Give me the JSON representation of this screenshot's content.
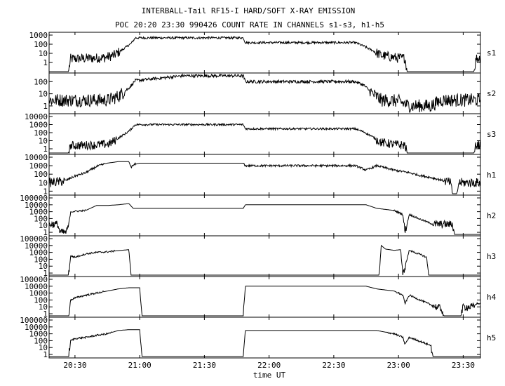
{
  "title": "INTERBALL-Tail RF15-I HARD/SOFT X-RAY EMISSION",
  "subtitle": "POC 20:20 23:30 990426  COUNT RATE IN CHANNELS s1-s3, h1-h5",
  "line_color": "#000000",
  "chart_data": {
    "type": "line",
    "xlabel": "time UT",
    "x_ticks": [
      "20:30",
      "21:00",
      "21:30",
      "22:00",
      "22:30",
      "23:00",
      "23:30"
    ],
    "x_range": [
      "20:18",
      "23:38"
    ],
    "y_scale": "log",
    "grid": false,
    "panels": [
      {
        "name": "s1",
        "y_ticks": [
          "1",
          "10",
          "100",
          "1000"
        ],
        "ylim": [
          0.1,
          1000
        ],
        "series": [
          {
            "x": [
              "20:18",
              "20:27",
              "20:28",
              "20:40",
              "20:44",
              "20:48",
              "20:52",
              "20:56",
              "20:58",
              "21:20",
              "21:48",
              "21:49",
              "22:00",
              "22:30",
              "22:40",
              "22:44",
              "22:48",
              "22:52",
              "23:00",
              "23:03",
              "23:04",
              "23:35",
              "23:36",
              "23:38"
            ],
            "y": [
              0.1,
              0.1,
              2.5,
              3,
              3.5,
              6,
              25,
              120,
              500,
              500,
              500,
              150,
              150,
              150,
              150,
              60,
              20,
              6,
              3,
              3,
              0.1,
              0.1,
              3,
              3
            ],
            "noise": [
              [
                20,
                20.5
              ],
              [
                20.9,
                22.9
              ],
              [
                22.8,
                23.05
              ],
              [
                23.07,
                23.8
              ]
            ]
          }
        ]
      },
      {
        "name": "s2",
        "y_ticks": [
          "1",
          "10",
          "100"
        ],
        "ylim": [
          0.3,
          300
        ],
        "series": [
          {
            "x": [
              "20:18",
              "20:20",
              "20:40",
              "20:45",
              "20:50",
              "20:55",
              "20:58",
              "21:20",
              "21:48",
              "21:49",
              "22:10",
              "22:40",
              "22:44",
              "22:48",
              "22:52",
              "23:00",
              "23:05",
              "23:15",
              "23:20",
              "23:25",
              "23:30",
              "23:38"
            ],
            "y": [
              3,
              3,
              3,
              3,
              6,
              30,
              120,
              300,
              300,
              100,
              100,
              100,
              50,
              10,
              3,
              2.5,
              1,
              1,
              3,
              3,
              3,
              3
            ],
            "noise": [
              [
                20,
                20.5
              ],
              [
                20.5,
                22.9
              ],
              [
                22.8,
                23.3
              ],
              [
                23.4,
                23.9
              ]
            ]
          }
        ]
      },
      {
        "name": "s3",
        "y_ticks": [
          "1",
          "10",
          "100",
          "1000",
          "10000"
        ],
        "ylim": [
          0.3,
          10000
        ],
        "series": [
          {
            "x": [
              "20:18",
              "20:27",
              "20:28",
              "20:40",
              "20:46",
              "20:50",
              "20:55",
              "20:58",
              "21:20",
              "21:48",
              "21:49",
              "22:00",
              "22:40",
              "22:44",
              "22:48",
              "22:52",
              "23:00",
              "23:03",
              "23:04",
              "23:35",
              "23:36",
              "23:38"
            ],
            "y": [
              0.3,
              0.3,
              2.5,
              3,
              4,
              20,
              150,
              1000,
              1000,
              1000,
              300,
              300,
              300,
              120,
              30,
              6,
              3,
              3,
              0.3,
              0.3,
              3,
              3
            ],
            "noise": [
              [
                20,
                20.5
              ],
              [
                20.9,
                22.9
              ],
              [
                22.8,
                23.05
              ],
              [
                23.07,
                23.8
              ]
            ]
          }
        ]
      },
      {
        "name": "h1",
        "y_ticks": [
          "1",
          "10",
          "100",
          "1000",
          "10000"
        ],
        "ylim": [
          0.5,
          10000
        ],
        "series": [
          {
            "x": [
              "20:18",
              "20:25",
              "20:30",
              "20:35",
              "20:40",
              "20:45",
              "20:50",
              "20:55",
              "20:56",
              "20:58",
              "21:00",
              "21:20",
              "21:48",
              "21:49",
              "22:00",
              "22:40",
              "22:45",
              "22:50",
              "22:58",
              "23:05",
              "23:10",
              "23:15",
              "23:20",
              "23:24",
              "23:25",
              "23:27",
              "23:28",
              "23:38"
            ],
            "y": [
              10,
              15,
              60,
              150,
              800,
              2000,
              3000,
              3000,
              700,
              1500,
              2000,
              2000,
              2000,
              1000,
              1000,
              1000,
              300,
              1000,
              300,
              150,
              70,
              40,
              20,
              10,
              0.5,
              0.5,
              10,
              10
            ],
            "noise": [
              [
                20,
                20.5
              ],
              [
                20.5,
                22.9
              ],
              [
                22.8,
                23.5
              ],
              [
                23.5,
                23.9
              ]
            ]
          }
        ]
      },
      {
        "name": "h2",
        "y_ticks": [
          "1",
          "10",
          "100",
          "1000",
          "10000",
          "100000"
        ],
        "ylim": [
          0.5,
          100000
        ],
        "series": [
          {
            "x": [
              "20:18",
              "20:22",
              "20:23",
              "20:26",
              "20:27",
              "20:28",
              "20:35",
              "20:40",
              "20:45",
              "20:50",
              "20:55",
              "20:57",
              "21:00",
              "21:48",
              "21:49",
              "22:45",
              "22:50",
              "22:58",
              "23:02",
              "23:03",
              "23:05",
              "23:10",
              "23:15",
              "23:16",
              "23:25",
              "23:26",
              "23:38"
            ],
            "y": [
              15,
              15,
              1,
              1,
              10,
              1000,
              1500,
              8000,
              8000,
              10000,
              15000,
              3000,
              3000,
              3000,
              10000,
              10000,
              3000,
              1500,
              400,
              1,
              400,
              80,
              20,
              15,
              15,
              0.5,
              0.5
            ],
            "noise": [
              [
                20,
                20.5
              ],
              [
                20.5,
                22.9
              ],
              [
                22.8,
                23.5
              ],
              [
                23.5,
                23.9
              ]
            ]
          }
        ]
      },
      {
        "name": "h3",
        "y_ticks": [
          "1",
          "10",
          "100",
          "1000",
          "10000",
          "100000"
        ],
        "ylim": [
          0.5,
          100000
        ],
        "series": [
          {
            "x": [
              "20:18",
              "20:27",
              "20:28",
              "20:30",
              "20:35",
              "20:40",
              "20:45",
              "20:50",
              "20:55",
              "20:56",
              "20:57",
              "22:51",
              "22:52",
              "22:54",
              "22:58",
              "23:01",
              "23:02",
              "23:05",
              "23:10",
              "23:13",
              "23:14",
              "23:38"
            ],
            "y": [
              0.5,
              0.5,
              300,
              200,
              600,
              1000,
              1200,
              1800,
              2500,
              0.5,
              0.5,
              0.5,
              10000,
              3000,
              2000,
              2500,
              0.5,
              2000,
              500,
              200,
              0.5,
              0.5
            ],
            "noise": [
              [
                20,
                20.5
              ],
              [
                20.9,
                22.9
              ],
              [
                22.8,
                23.5
              ],
              [
                23.5,
                23.9
              ]
            ]
          }
        ]
      },
      {
        "name": "h4",
        "y_ticks": [
          "1",
          "10",
          "100",
          "1000",
          "10000",
          "100000"
        ],
        "ylim": [
          0.5,
          100000
        ],
        "series": [
          {
            "x": [
              "20:18",
              "20:27",
              "20:28",
              "20:30",
              "20:35",
              "20:40",
              "20:45",
              "20:50",
              "20:55",
              "21:00",
              "21:01",
              "21:48",
              "21:49",
              "22:45",
              "22:50",
              "22:58",
              "23:02",
              "23:03",
              "23:05",
              "23:10",
              "23:15",
              "23:20",
              "23:21",
              "23:29",
              "23:30",
              "23:35",
              "23:36",
              "23:38"
            ],
            "y": [
              0.5,
              0.5,
              100,
              200,
              500,
              1000,
              2000,
              4000,
              6000,
              6000,
              0.5,
              0.5,
              10000,
              10000,
              4000,
              2000,
              500,
              30,
              500,
              100,
              20,
              5,
              0.5,
              0.5,
              10,
              10,
              30,
              30
            ],
            "noise": [
              [
                20,
                20.5
              ],
              [
                20.9,
                22.9
              ],
              [
                22.8,
                23.5
              ],
              [
                23.5,
                23.9
              ]
            ]
          }
        ]
      },
      {
        "name": "h5",
        "y_ticks": [
          "1",
          "10",
          "100",
          "1000",
          "10000",
          "100000"
        ],
        "ylim": [
          0.5,
          100000
        ],
        "series": [
          {
            "x": [
              "20:18",
              "20:27",
              "20:28",
              "20:30",
              "20:35",
              "20:40",
              "20:45",
              "20:50",
              "20:55",
              "21:00",
              "21:01",
              "21:48",
              "21:49",
              "22:45",
              "22:50",
              "22:58",
              "23:02",
              "23:03",
              "23:05",
              "23:10",
              "23:15",
              "23:16",
              "23:38"
            ],
            "y": [
              0.5,
              0.5,
              100,
              200,
              300,
              600,
              1000,
              3000,
              4000,
              4000,
              0.5,
              0.5,
              3000,
              3000,
              3000,
              1000,
              300,
              30,
              300,
              80,
              20,
              0.5,
              0.5
            ],
            "noise": [
              [
                20,
                20.5
              ],
              [
                20.9,
                22.9
              ],
              [
                22.8,
                23.5
              ],
              [
                23.5,
                23.9
              ]
            ]
          }
        ]
      }
    ]
  }
}
